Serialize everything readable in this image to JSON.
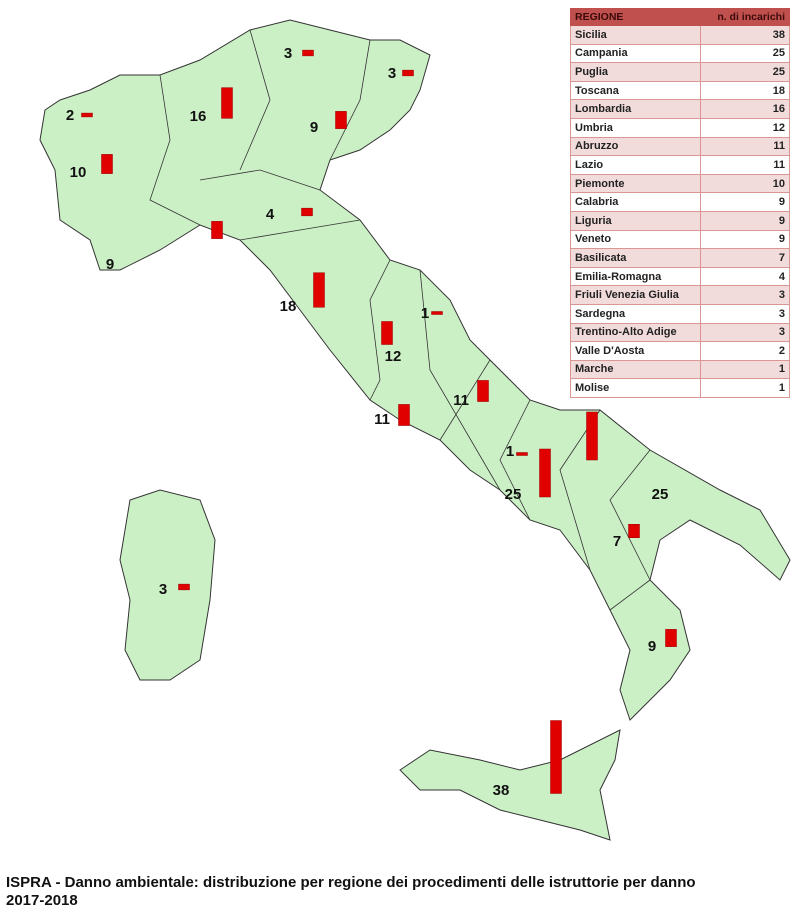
{
  "table": {
    "headers": [
      "REGIONE",
      "n. di incarichi"
    ],
    "rows": [
      [
        "Sicilia",
        "38"
      ],
      [
        "Campania",
        "25"
      ],
      [
        "Puglia",
        "25"
      ],
      [
        "Toscana",
        "18"
      ],
      [
        "Lombardia",
        "16"
      ],
      [
        "Umbria",
        "12"
      ],
      [
        "Abruzzo",
        "11"
      ],
      [
        "Lazio",
        "11"
      ],
      [
        "Piemonte",
        "10"
      ],
      [
        "Calabria",
        "9"
      ],
      [
        "Liguria",
        "9"
      ],
      [
        "Veneto",
        "9"
      ],
      [
        "Basilicata",
        "7"
      ],
      [
        "Emilia-Romagna",
        "4"
      ],
      [
        "Friuli Venezia Giulia",
        "3"
      ],
      [
        "Sardegna",
        "3"
      ],
      [
        "Trentino-Alto Adige",
        "3"
      ],
      [
        "Valle D'Aosta",
        "2"
      ],
      [
        "Marche",
        "1"
      ],
      [
        "Molise",
        "1"
      ]
    ]
  },
  "map": {
    "land_color": "#ccf0c6",
    "bar_color": "#e00000",
    "regions": [
      {
        "name": "Valle D'Aosta",
        "value": 2
      },
      {
        "name": "Piemonte",
        "value": 10
      },
      {
        "name": "Lombardia",
        "value": 16
      },
      {
        "name": "Trentino-Alto Adige",
        "value": 3
      },
      {
        "name": "Friuli Venezia Giulia",
        "value": 3
      },
      {
        "name": "Veneto",
        "value": 9
      },
      {
        "name": "Liguria",
        "value": 9
      },
      {
        "name": "Emilia-Romagna",
        "value": 4
      },
      {
        "name": "Toscana",
        "value": 18
      },
      {
        "name": "Marche",
        "value": 1
      },
      {
        "name": "Umbria",
        "value": 12
      },
      {
        "name": "Lazio",
        "value": 11
      },
      {
        "name": "Abruzzo",
        "value": 11
      },
      {
        "name": "Molise",
        "value": 1
      },
      {
        "name": "Campania",
        "value": 25
      },
      {
        "name": "Puglia",
        "value": 25
      },
      {
        "name": "Basilicata",
        "value": 7
      },
      {
        "name": "Calabria",
        "value": 9
      },
      {
        "name": "Sicilia",
        "value": 38
      },
      {
        "name": "Sardegna",
        "value": 3
      }
    ]
  },
  "caption": {
    "line1": "ISPRA - Danno ambientale: distribuzione per regione dei procedimenti delle istruttorie per danno",
    "line2": "2017-2018"
  }
}
